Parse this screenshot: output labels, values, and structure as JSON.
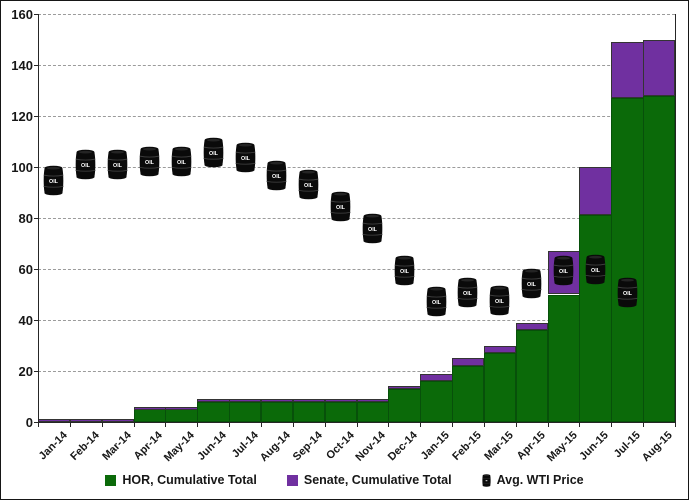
{
  "chart_data": {
    "type": "combo-stacked-bar-scatter",
    "title": "",
    "categories": [
      "Jan-14",
      "Feb-14",
      "Mar-14",
      "Apr-14",
      "May-14",
      "Jun-14",
      "Jul-14",
      "Aug-14",
      "Sep-14",
      "Oct-14",
      "Nov-14",
      "Dec-14",
      "Jan-15",
      "Feb-15",
      "Mar-15",
      "Apr-15",
      "May-15",
      "Jun-15",
      "Jul-15",
      "Aug-15"
    ],
    "series": [
      {
        "name": "HOR, Cumulative Total",
        "type": "stacked-bar",
        "color": "#0B6A09",
        "values": [
          0,
          0,
          0,
          5,
          5,
          8,
          8,
          8,
          8,
          8,
          8,
          13,
          16,
          22,
          27,
          36,
          50,
          81,
          127,
          128
        ]
      },
      {
        "name": "Senate, Cumulative Total",
        "type": "stacked-bar",
        "color": "#7030A0",
        "values": [
          1,
          1,
          1,
          1,
          1,
          1,
          1,
          1,
          1,
          1,
          1,
          1,
          3,
          3,
          3,
          3,
          17,
          19,
          22,
          22
        ]
      },
      {
        "name": "Avg. WTI Price",
        "type": "scatter",
        "marker": "oil-barrel-icon",
        "color": "#0A0A0A",
        "values": [
          94.6,
          100.8,
          100.8,
          102.1,
          102.2,
          105.8,
          103.6,
          96.5,
          93.2,
          84.4,
          75.8,
          59.3,
          47.2,
          50.6,
          47.8,
          54.5,
          59.3,
          59.8,
          50.9,
          null
        ]
      }
    ],
    "ylim": [
      0,
      160
    ],
    "y_ticks": [
      0,
      20,
      40,
      60,
      80,
      100,
      120,
      140,
      160
    ],
    "grid": true,
    "gridline_style": "dashed",
    "legend_position": "bottom",
    "xlabel": "",
    "ylabel": ""
  },
  "colors": {
    "hor_fill": "#0B6A09",
    "senate_fill": "#7030A0",
    "gridline": "#9B9B9B",
    "axis": "#262626",
    "text": "#171717",
    "barrel": "#0A0A0A",
    "background": "#FFFFFF"
  },
  "legend": {
    "items": [
      {
        "label": "HOR, Cumulative Total",
        "swatch": "green-square"
      },
      {
        "label": "Senate, Cumulative Total",
        "swatch": "purple-square"
      },
      {
        "label": "Avg. WTI Price",
        "swatch": "oil-barrel-icon"
      }
    ]
  }
}
